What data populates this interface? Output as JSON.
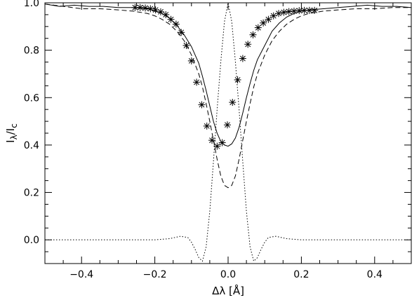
{
  "chart_data": {
    "type": "line",
    "title": "",
    "xlabel": "Δλ [Å]",
    "ylabel_main": "I",
    "ylabel_sub_1": "λ",
    "ylabel_slash": "/I",
    "ylabel_sub_2": "c",
    "xlim": [
      -0.5,
      0.5
    ],
    "ylim": [
      -0.1,
      1.0
    ],
    "grid": false,
    "legend": "none",
    "x_ticks": [
      -0.4,
      -0.2,
      0.0,
      0.2,
      0.4
    ],
    "x_tick_labels": [
      "−0.4",
      "−0.2",
      "0.0",
      "0.2",
      "0.4"
    ],
    "y_ticks": [
      0.0,
      0.2,
      0.4,
      0.6,
      0.8,
      1.0
    ],
    "y_tick_labels": [
      "0.0",
      "0.2",
      "0.4",
      "0.6",
      "0.8",
      "1.0"
    ],
    "x_minor_step": 0.05,
    "y_minor_step": 0.05,
    "series": [
      {
        "style": "solid",
        "x": [
          -0.5,
          -0.46,
          -0.42,
          -0.38,
          -0.34,
          -0.3,
          -0.26,
          -0.22,
          -0.2,
          -0.18,
          -0.16,
          -0.14,
          -0.12,
          -0.11,
          -0.1,
          -0.09,
          -0.08,
          -0.07,
          -0.06,
          -0.05,
          -0.04,
          -0.03,
          -0.02,
          -0.01,
          0.0,
          0.01,
          0.02,
          0.03,
          0.04,
          0.05,
          0.06,
          0.07,
          0.08,
          0.09,
          0.1,
          0.11,
          0.12,
          0.14,
          0.16,
          0.18,
          0.2,
          0.22,
          0.26,
          0.3,
          0.34,
          0.38,
          0.42,
          0.46,
          0.5
        ],
        "y": [
          0.995,
          0.985,
          0.99,
          0.985,
          0.985,
          0.98,
          0.98,
          0.975,
          0.965,
          0.955,
          0.935,
          0.905,
          0.865,
          0.84,
          0.815,
          0.78,
          0.745,
          0.69,
          0.63,
          0.565,
          0.5,
          0.45,
          0.415,
          0.4,
          0.395,
          0.405,
          0.43,
          0.475,
          0.535,
          0.6,
          0.66,
          0.715,
          0.76,
          0.79,
          0.82,
          0.85,
          0.88,
          0.915,
          0.94,
          0.955,
          0.965,
          0.97,
          0.975,
          0.98,
          0.985,
          0.99,
          0.985,
          0.985,
          0.98
        ]
      },
      {
        "style": "dashed",
        "x": [
          -0.5,
          -0.45,
          -0.4,
          -0.35,
          -0.3,
          -0.26,
          -0.22,
          -0.2,
          -0.18,
          -0.16,
          -0.14,
          -0.12,
          -0.1,
          -0.08,
          -0.07,
          -0.06,
          -0.05,
          -0.04,
          -0.03,
          -0.02,
          -0.01,
          0.0,
          0.01,
          0.02,
          0.03,
          0.04,
          0.05,
          0.06,
          0.07,
          0.08,
          0.1,
          0.12,
          0.14,
          0.16,
          0.18,
          0.2,
          0.22,
          0.26,
          0.3,
          0.35,
          0.4,
          0.45,
          0.5
        ],
        "y": [
          0.995,
          0.985,
          0.975,
          0.975,
          0.97,
          0.965,
          0.955,
          0.945,
          0.93,
          0.91,
          0.88,
          0.84,
          0.78,
          0.7,
          0.645,
          0.575,
          0.5,
          0.42,
          0.34,
          0.27,
          0.23,
          0.22,
          0.23,
          0.27,
          0.34,
          0.42,
          0.5,
          0.575,
          0.645,
          0.7,
          0.78,
          0.84,
          0.88,
          0.91,
          0.93,
          0.945,
          0.955,
          0.965,
          0.97,
          0.975,
          0.975,
          0.98,
          0.98
        ]
      },
      {
        "style": "dotted",
        "x": [
          -0.5,
          -0.3,
          -0.25,
          -0.2,
          -0.16,
          -0.13,
          -0.11,
          -0.1,
          -0.09,
          -0.08,
          -0.07,
          -0.06,
          -0.05,
          -0.04,
          -0.03,
          -0.02,
          -0.01,
          0.0,
          0.01,
          0.02,
          0.03,
          0.04,
          0.05,
          0.06,
          0.07,
          0.08,
          0.09,
          0.1,
          0.11,
          0.13,
          0.16,
          0.2,
          0.25,
          0.3,
          0.5
        ],
        "y": [
          0.0,
          0.0,
          0.0,
          0.0,
          0.005,
          0.015,
          0.01,
          -0.01,
          -0.04,
          -0.075,
          -0.09,
          -0.03,
          0.12,
          0.33,
          0.55,
          0.75,
          0.92,
          1.0,
          0.92,
          0.75,
          0.55,
          0.33,
          0.12,
          -0.03,
          -0.09,
          -0.075,
          -0.04,
          -0.01,
          0.01,
          0.015,
          0.005,
          0.0,
          0.0,
          0.0,
          0.0
        ]
      },
      {
        "style": "markers",
        "marker": "asterisk",
        "x": [
          -0.254,
          -0.24,
          -0.226,
          -0.212,
          -0.198,
          -0.184,
          -0.17,
          -0.156,
          -0.142,
          -0.128,
          -0.114,
          -0.1,
          -0.086,
          -0.072,
          -0.058,
          -0.044,
          -0.03,
          -0.016,
          -0.002,
          0.012,
          0.026,
          0.04,
          0.054,
          0.068,
          0.082,
          0.096,
          0.11,
          0.124,
          0.138,
          0.152,
          0.166,
          0.18,
          0.194,
          0.208,
          0.222,
          0.236
        ],
        "y": [
          0.98,
          0.98,
          0.978,
          0.975,
          0.97,
          0.962,
          0.95,
          0.93,
          0.91,
          0.875,
          0.82,
          0.755,
          0.665,
          0.57,
          0.48,
          0.42,
          0.395,
          0.41,
          0.485,
          0.58,
          0.675,
          0.765,
          0.825,
          0.865,
          0.895,
          0.915,
          0.93,
          0.945,
          0.955,
          0.96,
          0.963,
          0.965,
          0.967,
          0.968,
          0.968,
          0.968
        ]
      }
    ]
  }
}
